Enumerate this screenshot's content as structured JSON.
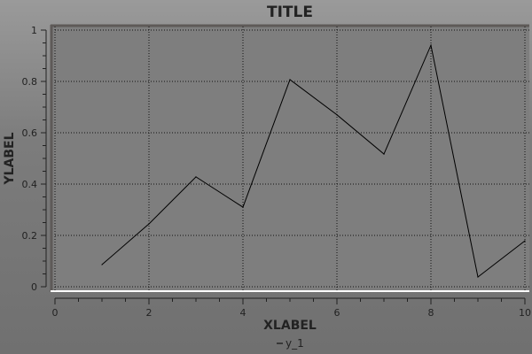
{
  "chart_data": {
    "type": "line",
    "title": "TITLE",
    "xlabel": "XLABEL",
    "ylabel": "YLABEL",
    "xlim": [
      0,
      10
    ],
    "ylim": [
      0,
      1
    ],
    "xticks": [
      "0",
      "2",
      "4",
      "6",
      "8",
      "10"
    ],
    "yticks": [
      "0",
      "0.2",
      "0.4",
      "0.6",
      "0.8",
      "1"
    ],
    "grid": true,
    "legend_position": "bottom",
    "series": [
      {
        "name": "y_1",
        "color": "#000000",
        "x": [
          1,
          2,
          3,
          4,
          5,
          6,
          7,
          8,
          9,
          10
        ],
        "y": [
          0.086,
          0.245,
          0.428,
          0.31,
          0.807,
          0.67,
          0.517,
          0.941,
          0.038,
          0.179
        ]
      }
    ]
  }
}
